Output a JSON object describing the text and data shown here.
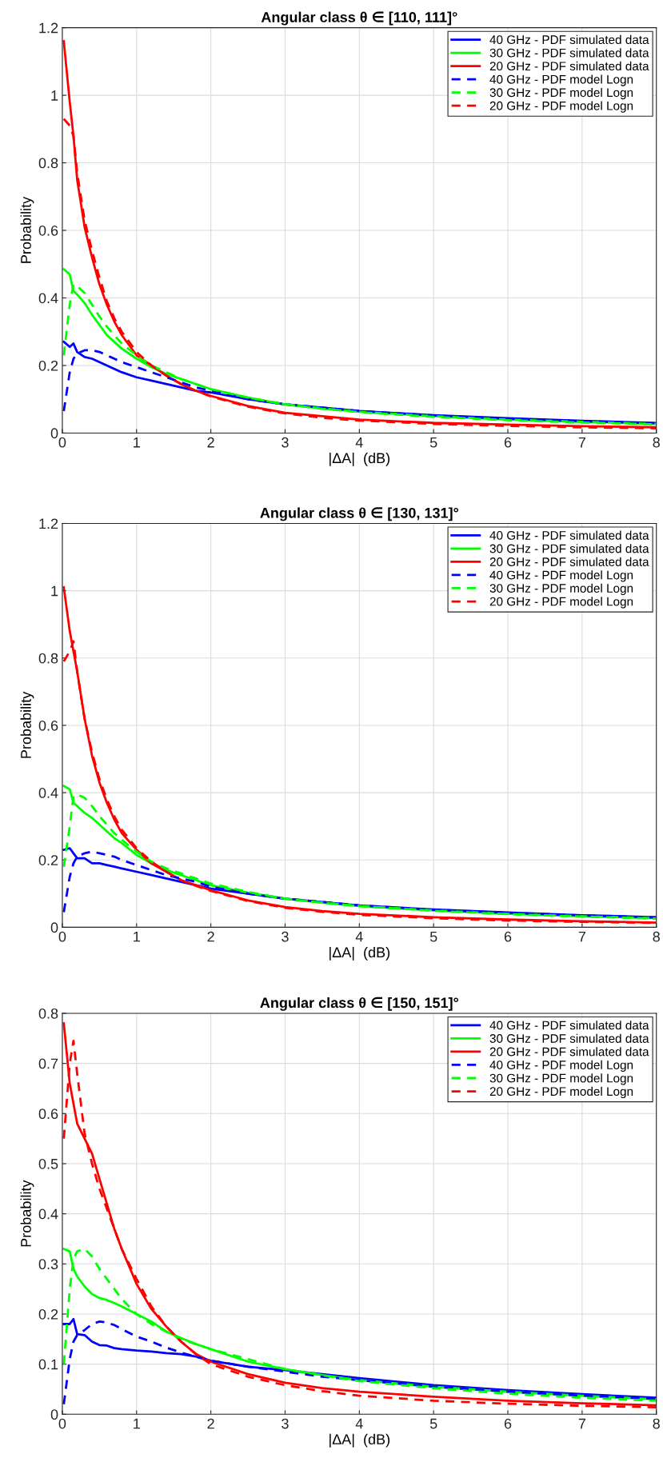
{
  "chart_data": [
    {
      "type": "line",
      "title": "Angular class θ ∈ [110, 111]°",
      "xlabel": "|ΔA|  (dB)",
      "ylabel": "Probability",
      "grid": true,
      "legend": "top right",
      "xlim": [
        0,
        8
      ],
      "xticks": [
        0,
        1,
        2,
        3,
        4,
        5,
        6,
        7,
        8
      ],
      "ylim": [
        0,
        1.2
      ],
      "yticks": [
        0,
        0.2,
        0.4,
        0.6,
        0.8,
        1,
        1.2
      ],
      "x": [
        0.02,
        0.1,
        0.15,
        0.2,
        0.3,
        0.4,
        0.5,
        0.6,
        0.7,
        0.8,
        1,
        1.2,
        1.4,
        1.6,
        1.8,
        2,
        2.5,
        3,
        3.5,
        4,
        5,
        6,
        7,
        8
      ],
      "series": [
        {
          "name": "40 GHz - PDF simulated data",
          "color": "#0000ff",
          "line_style": "solid",
          "values": [
            0.27,
            0.255,
            0.265,
            0.24,
            0.225,
            0.22,
            0.21,
            0.2,
            0.19,
            0.18,
            0.165,
            0.155,
            0.145,
            0.135,
            0.125,
            0.12,
            0.1,
            0.085,
            0.075,
            0.065,
            0.053,
            0.044,
            0.036,
            0.03
          ]
        },
        {
          "name": "30 GHz - PDF simulated data",
          "color": "#00ff00",
          "line_style": "solid",
          "values": [
            0.485,
            0.47,
            0.42,
            0.41,
            0.385,
            0.35,
            0.32,
            0.29,
            0.27,
            0.25,
            0.22,
            0.195,
            0.175,
            0.16,
            0.145,
            0.13,
            0.105,
            0.085,
            0.073,
            0.063,
            0.05,
            0.04,
            0.033,
            0.027
          ]
        },
        {
          "name": "20 GHz - PDF simulated data",
          "color": "#ff0000",
          "line_style": "solid",
          "values": [
            1.16,
            0.98,
            0.88,
            0.75,
            0.61,
            0.52,
            0.44,
            0.38,
            0.33,
            0.29,
            0.23,
            0.2,
            0.17,
            0.145,
            0.125,
            0.11,
            0.08,
            0.06,
            0.05,
            0.04,
            0.03,
            0.025,
            0.02,
            0.017
          ]
        },
        {
          "name": "40 GHz - PDF model Logn",
          "color": "#0000ff",
          "line_style": "dashed",
          "values": [
            0.065,
            0.18,
            0.22,
            0.235,
            0.245,
            0.245,
            0.24,
            0.23,
            0.22,
            0.21,
            0.195,
            0.18,
            0.165,
            0.15,
            0.135,
            0.125,
            0.1,
            0.085,
            0.075,
            0.065,
            0.052,
            0.042,
            0.035,
            0.029
          ]
        },
        {
          "name": "30 GHz - PDF model Logn",
          "color": "#00ff00",
          "line_style": "dashed",
          "values": [
            0.23,
            0.38,
            0.44,
            0.435,
            0.415,
            0.38,
            0.345,
            0.315,
            0.29,
            0.265,
            0.23,
            0.2,
            0.18,
            0.16,
            0.145,
            0.13,
            0.105,
            0.085,
            0.072,
            0.062,
            0.048,
            0.038,
            0.031,
            0.026
          ]
        },
        {
          "name": "20 GHz - PDF model Logn",
          "color": "#ff0000",
          "line_style": "dashed",
          "values": [
            0.93,
            0.91,
            0.88,
            0.77,
            0.63,
            0.54,
            0.46,
            0.39,
            0.34,
            0.3,
            0.24,
            0.2,
            0.17,
            0.145,
            0.125,
            0.108,
            0.078,
            0.058,
            0.045,
            0.037,
            0.027,
            0.021,
            0.017,
            0.014
          ]
        }
      ]
    },
    {
      "type": "line",
      "title": "Angular class θ ∈ [130, 131]°",
      "xlabel": "|ΔA|  (dB)",
      "ylabel": "Probability",
      "grid": true,
      "legend": "top right",
      "xlim": [
        0,
        8
      ],
      "xticks": [
        0,
        1,
        2,
        3,
        4,
        5,
        6,
        7,
        8
      ],
      "ylim": [
        0,
        1.2
      ],
      "yticks": [
        0,
        0.2,
        0.4,
        0.6,
        0.8,
        1,
        1.2
      ],
      "x": [
        0.02,
        0.1,
        0.15,
        0.2,
        0.3,
        0.4,
        0.5,
        0.6,
        0.7,
        0.8,
        1,
        1.2,
        1.4,
        1.6,
        1.8,
        2,
        2.5,
        3,
        3.5,
        4,
        5,
        6,
        7,
        8
      ],
      "series": [
        {
          "name": "40 GHz - PDF simulated data",
          "color": "#0000ff",
          "line_style": "solid",
          "values": [
            0.23,
            0.235,
            0.22,
            0.205,
            0.205,
            0.19,
            0.19,
            0.185,
            0.18,
            0.175,
            0.165,
            0.155,
            0.145,
            0.135,
            0.125,
            0.115,
            0.1,
            0.085,
            0.075,
            0.065,
            0.053,
            0.044,
            0.036,
            0.03
          ]
        },
        {
          "name": "30 GHz - PDF simulated data",
          "color": "#00ff00",
          "line_style": "solid",
          "values": [
            0.42,
            0.41,
            0.37,
            0.36,
            0.34,
            0.325,
            0.305,
            0.285,
            0.265,
            0.25,
            0.215,
            0.19,
            0.17,
            0.155,
            0.14,
            0.125,
            0.103,
            0.085,
            0.073,
            0.063,
            0.05,
            0.04,
            0.033,
            0.027
          ]
        },
        {
          "name": "20 GHz - PDF simulated data",
          "color": "#ff0000",
          "line_style": "solid",
          "values": [
            1.01,
            0.88,
            0.82,
            0.76,
            0.62,
            0.51,
            0.43,
            0.37,
            0.32,
            0.28,
            0.23,
            0.19,
            0.165,
            0.14,
            0.125,
            0.11,
            0.08,
            0.06,
            0.048,
            0.04,
            0.03,
            0.023,
            0.018,
            0.014
          ]
        },
        {
          "name": "40 GHz - PDF model Logn",
          "color": "#0000ff",
          "line_style": "dashed",
          "values": [
            0.045,
            0.15,
            0.19,
            0.21,
            0.22,
            0.225,
            0.22,
            0.215,
            0.21,
            0.2,
            0.185,
            0.17,
            0.155,
            0.145,
            0.135,
            0.12,
            0.1,
            0.085,
            0.075,
            0.065,
            0.052,
            0.043,
            0.035,
            0.029
          ]
        },
        {
          "name": "30 GHz - PDF model Logn",
          "color": "#00ff00",
          "line_style": "dashed",
          "values": [
            0.18,
            0.3,
            0.39,
            0.395,
            0.385,
            0.36,
            0.33,
            0.305,
            0.28,
            0.26,
            0.225,
            0.195,
            0.175,
            0.16,
            0.145,
            0.13,
            0.105,
            0.085,
            0.073,
            0.063,
            0.049,
            0.039,
            0.032,
            0.026
          ]
        },
        {
          "name": "20 GHz - PDF model Logn",
          "color": "#ff0000",
          "line_style": "dashed",
          "values": [
            0.79,
            0.82,
            0.85,
            0.76,
            0.62,
            0.52,
            0.44,
            0.38,
            0.33,
            0.29,
            0.235,
            0.195,
            0.165,
            0.14,
            0.123,
            0.108,
            0.078,
            0.058,
            0.046,
            0.037,
            0.027,
            0.02,
            0.016,
            0.013
          ]
        }
      ]
    },
    {
      "type": "line",
      "title": "Angular class θ ∈ [150, 151]°",
      "xlabel": "|ΔA|  (dB)",
      "ylabel": "Probability",
      "grid": true,
      "legend": "top right",
      "xlim": [
        0,
        8
      ],
      "xticks": [
        0,
        1,
        2,
        3,
        4,
        5,
        6,
        7,
        8
      ],
      "ylim": [
        0,
        0.8
      ],
      "yticks": [
        0,
        0.1,
        0.2,
        0.3,
        0.4,
        0.5,
        0.6,
        0.7,
        0.8
      ],
      "x": [
        0.02,
        0.1,
        0.15,
        0.2,
        0.3,
        0.4,
        0.5,
        0.6,
        0.7,
        0.8,
        1,
        1.2,
        1.4,
        1.6,
        1.8,
        2,
        2.5,
        3,
        3.5,
        4,
        5,
        6,
        7,
        8
      ],
      "series": [
        {
          "name": "40 GHz - PDF simulated data",
          "color": "#0000ff",
          "line_style": "solid",
          "values": [
            0.18,
            0.18,
            0.19,
            0.16,
            0.158,
            0.145,
            0.138,
            0.137,
            0.132,
            0.13,
            0.127,
            0.125,
            0.122,
            0.12,
            0.115,
            0.107,
            0.095,
            0.088,
            0.08,
            0.072,
            0.058,
            0.048,
            0.04,
            0.033
          ]
        },
        {
          "name": "30 GHz - PDF simulated data",
          "color": "#00ff00",
          "line_style": "solid",
          "values": [
            0.33,
            0.325,
            0.29,
            0.275,
            0.255,
            0.24,
            0.232,
            0.228,
            0.222,
            0.215,
            0.2,
            0.185,
            0.165,
            0.152,
            0.14,
            0.13,
            0.105,
            0.09,
            0.078,
            0.068,
            0.055,
            0.045,
            0.037,
            0.03
          ]
        },
        {
          "name": "20 GHz - PDF simulated data",
          "color": "#ff0000",
          "line_style": "solid",
          "values": [
            0.78,
            0.66,
            0.62,
            0.58,
            0.55,
            0.52,
            0.47,
            0.42,
            0.37,
            0.33,
            0.26,
            0.21,
            0.175,
            0.145,
            0.12,
            0.105,
            0.08,
            0.063,
            0.052,
            0.045,
            0.035,
            0.027,
            0.022,
            0.018
          ]
        },
        {
          "name": "40 GHz - PDF model Logn",
          "color": "#0000ff",
          "line_style": "dashed",
          "values": [
            0.02,
            0.11,
            0.145,
            0.158,
            0.168,
            0.18,
            0.185,
            0.183,
            0.178,
            0.17,
            0.155,
            0.145,
            0.133,
            0.123,
            0.115,
            0.107,
            0.095,
            0.085,
            0.075,
            0.068,
            0.055,
            0.045,
            0.037,
            0.031
          ]
        },
        {
          "name": "30 GHz - PDF model Logn",
          "color": "#00ff00",
          "line_style": "dashed",
          "values": [
            0.1,
            0.25,
            0.31,
            0.325,
            0.33,
            0.315,
            0.29,
            0.27,
            0.25,
            0.23,
            0.2,
            0.18,
            0.165,
            0.15,
            0.14,
            0.13,
            0.11,
            0.09,
            0.078,
            0.066,
            0.052,
            0.041,
            0.033,
            0.027
          ]
        },
        {
          "name": "20 GHz - PDF model Logn",
          "color": "#ff0000",
          "line_style": "dashed",
          "values": [
            0.55,
            0.7,
            0.745,
            0.68,
            0.56,
            0.5,
            0.45,
            0.41,
            0.37,
            0.33,
            0.27,
            0.215,
            0.175,
            0.145,
            0.12,
            0.1,
            0.075,
            0.058,
            0.046,
            0.037,
            0.027,
            0.021,
            0.017,
            0.014
          ]
        }
      ]
    }
  ]
}
